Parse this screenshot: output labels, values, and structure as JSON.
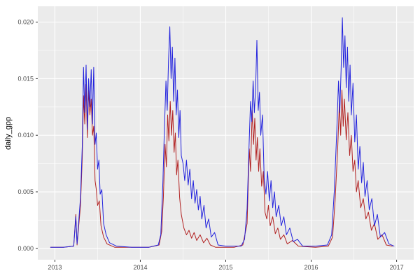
{
  "chart_data": {
    "type": "line",
    "title": "",
    "xlabel": "",
    "ylabel": "daily_gpp",
    "legend": "none",
    "grid": true,
    "x_ticks": [
      2013,
      2014,
      2015,
      2016,
      2017
    ],
    "x_minor_ticks": [
      2013.5,
      2014.5,
      2015.5,
      2016.5
    ],
    "y_ticks": [
      0.0,
      0.005,
      0.01,
      0.015,
      0.02
    ],
    "y_minor_ticks": [
      0.0025,
      0.0075,
      0.0125,
      0.0175
    ],
    "xlim": [
      2012.8,
      2017.2
    ],
    "ylim": [
      -0.001,
      0.0214
    ],
    "style": {
      "panel_bg": "#EBEBEB",
      "grid_color": "#FFFFFF",
      "tick_mark_color": "#333333",
      "tick_label_color": "#4D4D4D",
      "axis_title_color": "#000000",
      "background": "#FFFFFF",
      "blue": "#2222DD",
      "red": "#B22222"
    },
    "series": [
      {
        "name": "red-series",
        "color": "#B22222",
        "points": [
          [
            2012.95,
            0.0001
          ],
          [
            2013.1,
            0.0001
          ],
          [
            2013.22,
            0.0002
          ],
          [
            2013.245,
            0.003
          ],
          [
            2013.26,
            0.0003
          ],
          [
            2013.3,
            0.0038
          ],
          [
            2013.32,
            0.008
          ],
          [
            2013.335,
            0.0135
          ],
          [
            2013.35,
            0.011
          ],
          [
            2013.365,
            0.0145
          ],
          [
            2013.38,
            0.0098
          ],
          [
            2013.395,
            0.014
          ],
          [
            2013.41,
            0.0118
          ],
          [
            2013.425,
            0.0132
          ],
          [
            2013.44,
            0.01
          ],
          [
            2013.455,
            0.0108
          ],
          [
            2013.47,
            0.006
          ],
          [
            2013.485,
            0.0052
          ],
          [
            2013.5,
            0.0038
          ],
          [
            2013.52,
            0.0042
          ],
          [
            2013.54,
            0.002
          ],
          [
            2013.57,
            0.001
          ],
          [
            2013.61,
            0.0004
          ],
          [
            2013.7,
            0.0001
          ],
          [
            2014.1,
            0.0001
          ],
          [
            2014.22,
            0.0003
          ],
          [
            2014.25,
            0.0015
          ],
          [
            2014.27,
            0.0045
          ],
          [
            2014.29,
            0.0092
          ],
          [
            2014.305,
            0.0072
          ],
          [
            2014.32,
            0.0118
          ],
          [
            2014.335,
            0.0095
          ],
          [
            2014.35,
            0.013
          ],
          [
            2014.365,
            0.01
          ],
          [
            2014.38,
            0.0122
          ],
          [
            2014.395,
            0.0085
          ],
          [
            2014.41,
            0.0102
          ],
          [
            2014.425,
            0.0065
          ],
          [
            2014.44,
            0.0078
          ],
          [
            2014.46,
            0.0045
          ],
          [
            2014.48,
            0.003
          ],
          [
            2014.51,
            0.0018
          ],
          [
            2014.54,
            0.0012
          ],
          [
            2014.57,
            0.0016
          ],
          [
            2014.6,
            0.0009
          ],
          [
            2014.63,
            0.0014
          ],
          [
            2014.66,
            0.0007
          ],
          [
            2014.7,
            0.0012
          ],
          [
            2014.74,
            0.0005
          ],
          [
            2014.78,
            0.0009
          ],
          [
            2014.82,
            0.0003
          ],
          [
            2014.88,
            0.0001
          ],
          [
            2015.1,
            0.0001
          ],
          [
            2015.2,
            0.0003
          ],
          [
            2015.25,
            0.0022
          ],
          [
            2015.275,
            0.0088
          ],
          [
            2015.29,
            0.0068
          ],
          [
            2015.31,
            0.0122
          ],
          [
            2015.325,
            0.0092
          ],
          [
            2015.34,
            0.0115
          ],
          [
            2015.355,
            0.0078
          ],
          [
            2015.37,
            0.0098
          ],
          [
            2015.385,
            0.0068
          ],
          [
            2015.4,
            0.0088
          ],
          [
            2015.42,
            0.0055
          ],
          [
            2015.44,
            0.0068
          ],
          [
            2015.46,
            0.0032
          ],
          [
            2015.48,
            0.0026
          ],
          [
            2015.5,
            0.0038
          ],
          [
            2015.52,
            0.002
          ],
          [
            2015.55,
            0.0028
          ],
          [
            2015.58,
            0.0013
          ],
          [
            2015.61,
            0.0018
          ],
          [
            2015.64,
            0.0008
          ],
          [
            2015.68,
            0.0012
          ],
          [
            2015.72,
            0.0004
          ],
          [
            2015.78,
            0.0007
          ],
          [
            2015.85,
            0.0002
          ],
          [
            2016.05,
            0.0001
          ],
          [
            2016.2,
            0.0002
          ],
          [
            2016.25,
            0.001
          ],
          [
            2016.28,
            0.0042
          ],
          [
            2016.31,
            0.0088
          ],
          [
            2016.33,
            0.0128
          ],
          [
            2016.345,
            0.01
          ],
          [
            2016.36,
            0.014
          ],
          [
            2016.375,
            0.0108
          ],
          [
            2016.39,
            0.0132
          ],
          [
            2016.41,
            0.0096
          ],
          [
            2016.43,
            0.012
          ],
          [
            2016.45,
            0.0082
          ],
          [
            2016.47,
            0.01
          ],
          [
            2016.49,
            0.0068
          ],
          [
            2016.51,
            0.0078
          ],
          [
            2016.53,
            0.005
          ],
          [
            2016.55,
            0.006
          ],
          [
            2016.58,
            0.0036
          ],
          [
            2016.61,
            0.0044
          ],
          [
            2016.64,
            0.0026
          ],
          [
            2016.67,
            0.0032
          ],
          [
            2016.705,
            0.0016
          ],
          [
            2016.74,
            0.0022
          ],
          [
            2016.78,
            0.0008
          ],
          [
            2016.83,
            0.0012
          ],
          [
            2016.88,
            0.0003
          ],
          [
            2016.95,
            0.0002
          ]
        ]
      },
      {
        "name": "blue-series",
        "color": "#2222DD",
        "points": [
          [
            2012.95,
            0.0001
          ],
          [
            2013.1,
            0.0001
          ],
          [
            2013.22,
            0.0002
          ],
          [
            2013.245,
            0.0028
          ],
          [
            2013.26,
            0.0004
          ],
          [
            2013.3,
            0.0045
          ],
          [
            2013.32,
            0.009
          ],
          [
            2013.335,
            0.016
          ],
          [
            2013.35,
            0.012
          ],
          [
            2013.365,
            0.0162
          ],
          [
            2013.38,
            0.0105
          ],
          [
            2013.395,
            0.015
          ],
          [
            2013.41,
            0.0125
          ],
          [
            2013.425,
            0.0158
          ],
          [
            2013.44,
            0.011
          ],
          [
            2013.455,
            0.016
          ],
          [
            2013.47,
            0.0092
          ],
          [
            2013.485,
            0.0102
          ],
          [
            2013.5,
            0.007
          ],
          [
            2013.515,
            0.0078
          ],
          [
            2013.53,
            0.0048
          ],
          [
            2013.55,
            0.0052
          ],
          [
            2013.57,
            0.0022
          ],
          [
            2013.6,
            0.0012
          ],
          [
            2013.64,
            0.0005
          ],
          [
            2013.72,
            0.0002
          ],
          [
            2013.9,
            0.0001
          ],
          [
            2014.1,
            0.0001
          ],
          [
            2014.21,
            0.0003
          ],
          [
            2014.24,
            0.0012
          ],
          [
            2014.265,
            0.006
          ],
          [
            2014.28,
            0.01
          ],
          [
            2014.3,
            0.0148
          ],
          [
            2014.315,
            0.0122
          ],
          [
            2014.33,
            0.0165
          ],
          [
            2014.345,
            0.0196
          ],
          [
            2014.36,
            0.015
          ],
          [
            2014.375,
            0.0178
          ],
          [
            2014.39,
            0.013
          ],
          [
            2014.405,
            0.0168
          ],
          [
            2014.42,
            0.0118
          ],
          [
            2014.435,
            0.014
          ],
          [
            2014.45,
            0.0098
          ],
          [
            2014.465,
            0.0122
          ],
          [
            2014.48,
            0.0082
          ],
          [
            2014.5,
            0.0075
          ],
          [
            2014.52,
            0.006
          ],
          [
            2014.54,
            0.0078
          ],
          [
            2014.56,
            0.0056
          ],
          [
            2014.58,
            0.007
          ],
          [
            2014.6,
            0.0044
          ],
          [
            2014.62,
            0.006
          ],
          [
            2014.64,
            0.004
          ],
          [
            2014.66,
            0.0052
          ],
          [
            2014.68,
            0.0034
          ],
          [
            2014.7,
            0.0046
          ],
          [
            2014.72,
            0.0026
          ],
          [
            2014.745,
            0.0038
          ],
          [
            2014.77,
            0.0018
          ],
          [
            2014.8,
            0.0026
          ],
          [
            2014.83,
            0.001
          ],
          [
            2014.87,
            0.0014
          ],
          [
            2014.91,
            0.0003
          ],
          [
            2015.0,
            0.0002
          ],
          [
            2015.18,
            0.0002
          ],
          [
            2015.22,
            0.0008
          ],
          [
            2015.25,
            0.0035
          ],
          [
            2015.27,
            0.0085
          ],
          [
            2015.29,
            0.013
          ],
          [
            2015.305,
            0.0112
          ],
          [
            2015.32,
            0.0148
          ],
          [
            2015.335,
            0.012
          ],
          [
            2015.35,
            0.0142
          ],
          [
            2015.365,
            0.0184
          ],
          [
            2015.38,
            0.0122
          ],
          [
            2015.395,
            0.0138
          ],
          [
            2015.41,
            0.01
          ],
          [
            2015.43,
            0.0118
          ],
          [
            2015.45,
            0.0062
          ],
          [
            2015.47,
            0.0048
          ],
          [
            2015.49,
            0.0068
          ],
          [
            2015.51,
            0.0042
          ],
          [
            2015.53,
            0.006
          ],
          [
            2015.55,
            0.0036
          ],
          [
            2015.57,
            0.005
          ],
          [
            2015.59,
            0.0028
          ],
          [
            2015.62,
            0.0038
          ],
          [
            2015.65,
            0.002
          ],
          [
            2015.68,
            0.0028
          ],
          [
            2015.71,
            0.0012
          ],
          [
            2015.75,
            0.0018
          ],
          [
            2015.79,
            0.0006
          ],
          [
            2015.84,
            0.0008
          ],
          [
            2015.9,
            0.0002
          ],
          [
            2016.05,
            0.0002
          ],
          [
            2016.19,
            0.0003
          ],
          [
            2016.24,
            0.0012
          ],
          [
            2016.27,
            0.005
          ],
          [
            2016.3,
            0.0105
          ],
          [
            2016.32,
            0.0148
          ],
          [
            2016.335,
            0.012
          ],
          [
            2016.35,
            0.0158
          ],
          [
            2016.365,
            0.0204
          ],
          [
            2016.38,
            0.016
          ],
          [
            2016.395,
            0.0188
          ],
          [
            2016.41,
            0.0142
          ],
          [
            2016.425,
            0.0178
          ],
          [
            2016.44,
            0.013
          ],
          [
            2016.455,
            0.0162
          ],
          [
            2016.47,
            0.0118
          ],
          [
            2016.49,
            0.0146
          ],
          [
            2016.51,
            0.0094
          ],
          [
            2016.53,
            0.0118
          ],
          [
            2016.55,
            0.007
          ],
          [
            2016.57,
            0.009
          ],
          [
            2016.59,
            0.0058
          ],
          [
            2016.61,
            0.0076
          ],
          [
            2016.63,
            0.0046
          ],
          [
            2016.655,
            0.006
          ],
          [
            2016.68,
            0.0034
          ],
          [
            2016.71,
            0.0044
          ],
          [
            2016.74,
            0.002
          ],
          [
            2016.775,
            0.003
          ],
          [
            2016.81,
            0.001
          ],
          [
            2016.86,
            0.0014
          ],
          [
            2016.91,
            0.0004
          ],
          [
            2016.97,
            0.0002
          ]
        ]
      }
    ]
  }
}
